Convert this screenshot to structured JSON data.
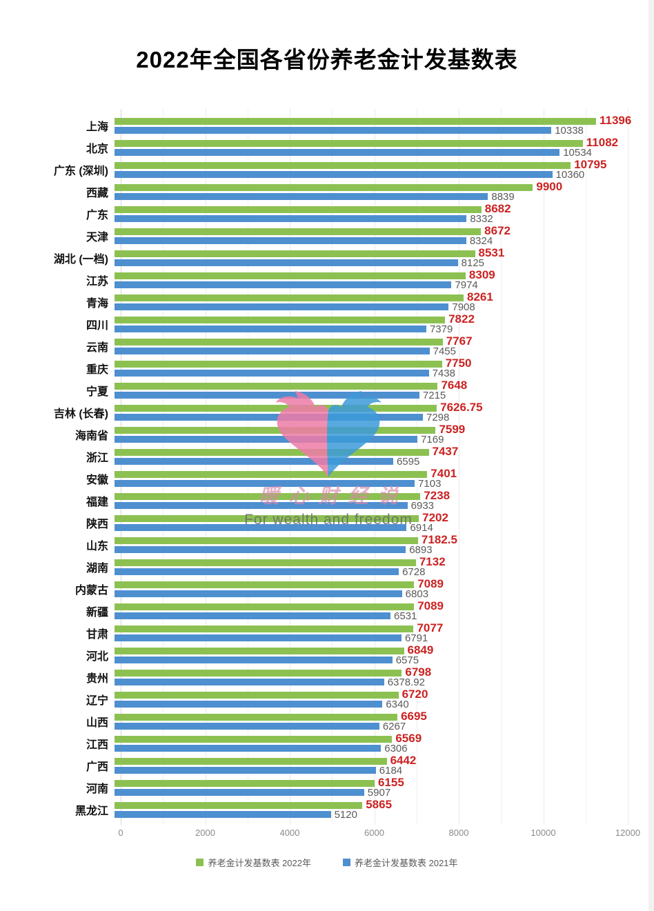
{
  "title": "2022年全国各省份养老金计发基数表",
  "watermark": {
    "logo": "twin-dolphin-heart-logo",
    "name": "暖心财经说",
    "slogan": "For wealth and freedom",
    "logo_colors": {
      "left": "#ee7ca8",
      "right": "#3d9bd9"
    }
  },
  "colors": {
    "bar_2022": "#8cc152",
    "bar_2021": "#4e8fd0",
    "value_label_2022": "#cc2222",
    "value_label_2021": "#595959",
    "category_label": "#111111",
    "tick_label": "#8a8a8a",
    "gridline": "#ededed",
    "background": "#ffffff"
  },
  "chart_data": {
    "type": "bar",
    "orientation": "horizontal",
    "title": "2022年全国各省份养老金计发基数表",
    "xlabel": "",
    "ylabel": "",
    "xlim": [
      0,
      12000
    ],
    "x_ticks": [
      0,
      2000,
      4000,
      6000,
      8000,
      10000,
      12000
    ],
    "grid": true,
    "legend_position": "bottom",
    "categories": [
      "上海",
      "北京",
      "广东 (深圳)",
      "西藏",
      "广东",
      "天津",
      "湖北 (一档)",
      "江苏",
      "青海",
      "四川",
      "云南",
      "重庆",
      "宁夏",
      "吉林 (长春)",
      "海南省",
      "浙江",
      "安徽",
      "福建",
      "陕西",
      "山东",
      "湖南",
      "内蒙古",
      "新疆",
      "甘肃",
      "河北",
      "贵州",
      "辽宁",
      "山西",
      "江西",
      "广西",
      "河南",
      "黑龙江"
    ],
    "series": [
      {
        "name": "养老金计发基数表 2022年",
        "color": "#8cc152",
        "values": [
          11396,
          11082,
          10795,
          9900,
          8682,
          8672,
          8531,
          8309,
          8261,
          7822,
          7767,
          7750,
          7648,
          7626.75,
          7599,
          7437,
          7401,
          7238,
          7202,
          7182.5,
          7132,
          7089,
          7089,
          7077,
          6849,
          6798,
          6720,
          6695,
          6569,
          6442,
          6155,
          5865
        ]
      },
      {
        "name": "养老金计发基数表 2021年",
        "color": "#4e8fd0",
        "values": [
          10338,
          10534,
          10360,
          8839,
          8332,
          8324,
          8125,
          7974,
          7908,
          7379,
          7455,
          7438,
          7215,
          7298,
          7169,
          6595,
          7103,
          6933,
          6914,
          6893,
          6728,
          6803,
          6531,
          6791,
          6575,
          6378.92,
          6340,
          6267,
          6306,
          6184,
          5907,
          5120
        ]
      }
    ]
  }
}
